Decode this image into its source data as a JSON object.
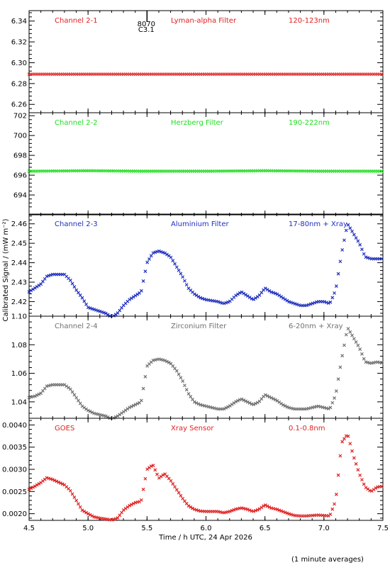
{
  "chart_data": {
    "type": "scatter",
    "xlabel": "Time / h UTC, 24 Apr 2026",
    "ylabel": "Calibrated Signal / (mW m⁻²)",
    "footer": "(1 minute averages)",
    "xlim": [
      4.5,
      7.5
    ],
    "x_ticks": [
      4.5,
      5.0,
      5.5,
      6.0,
      6.5,
      7.0,
      7.5
    ],
    "x_tick_labels": [
      "4.5",
      "5.0",
      "5.5",
      "6.0",
      "6.5",
      "7.0",
      "7.5"
    ],
    "marker_annotation": {
      "x": 5.5,
      "label_top": "8070",
      "label_bottom": "C3.1"
    },
    "panels": [
      {
        "channel": "Channel 2-1",
        "filter": "Lyman-alpha Filter",
        "band": "120-123nm",
        "color": "#e02020",
        "ylim": [
          6.252,
          6.35
        ],
        "y_ticks": [
          6.26,
          6.28,
          6.3,
          6.32,
          6.34
        ],
        "y_tick_labels": [
          "6.26",
          "6.28",
          "6.30",
          "6.32",
          "6.34"
        ],
        "series": [
          {
            "points": [
              [
                4.5,
                6.289
              ],
              [
                5.0,
                6.289
              ],
              [
                5.5,
                6.289
              ],
              [
                6.0,
                6.289
              ],
              [
                6.5,
                6.289
              ],
              [
                7.0,
                6.289
              ],
              [
                7.5,
                6.289
              ]
            ]
          }
        ]
      },
      {
        "channel": "Channel 2-2",
        "filter": "Herzberg Filter",
        "band": "190-222nm",
        "color": "#22dd22",
        "ylim": [
          692.0,
          702.3
        ],
        "y_ticks": [
          694,
          696,
          698,
          700,
          702
        ],
        "y_tick_labels": [
          "694",
          "696",
          "698",
          "700",
          "702"
        ],
        "series": [
          {
            "points": [
              [
                4.5,
                696.4
              ],
              [
                5.0,
                696.45
              ],
              [
                5.5,
                696.4
              ],
              [
                6.0,
                696.4
              ],
              [
                6.5,
                696.45
              ],
              [
                7.0,
                696.4
              ],
              [
                7.5,
                696.4
              ]
            ]
          }
        ]
      },
      {
        "channel": "Channel 2-3",
        "filter": "Aluminium Filter",
        "band": "17-80nm + Xray",
        "color": "#1f2fbf",
        "ylim": [
          2.4125,
          2.465
        ],
        "y_ticks": [
          2.42,
          2.43,
          2.44,
          2.45,
          2.46
        ],
        "y_tick_labels": [
          "2.42",
          "2.43",
          "2.44",
          "2.45",
          "2.46"
        ],
        "series": [
          {
            "points": [
              [
                4.5,
                2.425
              ],
              [
                4.55,
                2.427
              ],
              [
                4.6,
                2.429
              ],
              [
                4.65,
                2.433
              ],
              [
                4.7,
                2.434
              ],
              [
                4.8,
                2.434
              ],
              [
                4.85,
                2.431
              ],
              [
                4.9,
                2.426
              ],
              [
                4.95,
                2.422
              ],
              [
                5.0,
                2.417
              ],
              [
                5.05,
                2.416
              ],
              [
                5.1,
                2.415
              ],
              [
                5.15,
                2.414
              ],
              [
                5.2,
                2.412
              ],
              [
                5.25,
                2.414
              ],
              [
                5.3,
                2.418
              ],
              [
                5.35,
                2.421
              ],
              [
                5.4,
                2.423
              ],
              [
                5.45,
                2.425
              ],
              [
                5.5,
                2.44
              ],
              [
                5.55,
                2.445
              ],
              [
                5.6,
                2.446
              ],
              [
                5.65,
                2.445
              ],
              [
                5.7,
                2.443
              ],
              [
                5.75,
                2.438
              ],
              [
                5.8,
                2.433
              ],
              [
                5.85,
                2.427
              ],
              [
                5.9,
                2.424
              ],
              [
                5.95,
                2.422
              ],
              [
                6.0,
                2.421
              ],
              [
                6.1,
                2.42
              ],
              [
                6.15,
                2.419
              ],
              [
                6.2,
                2.42
              ],
              [
                6.25,
                2.423
              ],
              [
                6.3,
                2.425
              ],
              [
                6.35,
                2.423
              ],
              [
                6.4,
                2.421
              ],
              [
                6.45,
                2.423
              ],
              [
                6.5,
                2.427
              ],
              [
                6.55,
                2.425
              ],
              [
                6.6,
                2.424
              ],
              [
                6.65,
                2.422
              ],
              [
                6.7,
                2.42
              ],
              [
                6.75,
                2.419
              ],
              [
                6.8,
                2.418
              ],
              [
                6.85,
                2.418
              ],
              [
                6.9,
                2.419
              ],
              [
                6.95,
                2.42
              ],
              [
                7.0,
                2.42
              ],
              [
                7.05,
                2.419
              ],
              [
                7.1,
                2.426
              ],
              [
                7.15,
                2.445
              ],
              [
                7.2,
                2.46
              ],
              [
                7.25,
                2.455
              ],
              [
                7.3,
                2.45
              ],
              [
                7.35,
                2.443
              ],
              [
                7.4,
                2.442
              ],
              [
                7.45,
                2.442
              ],
              [
                7.5,
                2.442
              ]
            ]
          }
        ]
      },
      {
        "channel": "Channel 2-4",
        "filter": "Zirconium Filter",
        "band": "6-20nm + Xray",
        "color": "#707070",
        "ylim": [
          1.0285,
          1.1
        ],
        "y_ticks": [
          1.04,
          1.06,
          1.08,
          1.1
        ],
        "y_tick_labels": [
          "1.04",
          "1.06",
          "1.08",
          "1.10"
        ],
        "series": [
          {
            "points": [
              [
                4.5,
                1.043
              ],
              [
                4.55,
                1.044
              ],
              [
                4.6,
                1.046
              ],
              [
                4.65,
                1.051
              ],
              [
                4.7,
                1.052
              ],
              [
                4.8,
                1.052
              ],
              [
                4.85,
                1.049
              ],
              [
                4.9,
                1.043
              ],
              [
                4.95,
                1.037
              ],
              [
                5.0,
                1.034
              ],
              [
                5.05,
                1.032
              ],
              [
                5.1,
                1.031
              ],
              [
                5.15,
                1.03
              ],
              [
                5.2,
                1.028
              ],
              [
                5.25,
                1.03
              ],
              [
                5.3,
                1.033
              ],
              [
                5.35,
                1.036
              ],
              [
                5.4,
                1.038
              ],
              [
                5.45,
                1.04
              ],
              [
                5.5,
                1.065
              ],
              [
                5.55,
                1.069
              ],
              [
                5.6,
                1.07
              ],
              [
                5.65,
                1.069
              ],
              [
                5.7,
                1.067
              ],
              [
                5.75,
                1.062
              ],
              [
                5.8,
                1.055
              ],
              [
                5.85,
                1.046
              ],
              [
                5.9,
                1.04
              ],
              [
                5.95,
                1.038
              ],
              [
                6.0,
                1.037
              ],
              [
                6.1,
                1.035
              ],
              [
                6.15,
                1.035
              ],
              [
                6.2,
                1.037
              ],
              [
                6.25,
                1.04
              ],
              [
                6.3,
                1.042
              ],
              [
                6.35,
                1.04
              ],
              [
                6.4,
                1.038
              ],
              [
                6.45,
                1.04
              ],
              [
                6.5,
                1.045
              ],
              [
                6.55,
                1.043
              ],
              [
                6.6,
                1.041
              ],
              [
                6.65,
                1.038
              ],
              [
                6.7,
                1.036
              ],
              [
                6.75,
                1.035
              ],
              [
                6.8,
                1.035
              ],
              [
                6.85,
                1.035
              ],
              [
                6.9,
                1.036
              ],
              [
                6.95,
                1.037
              ],
              [
                7.0,
                1.036
              ],
              [
                7.05,
                1.035
              ],
              [
                7.1,
                1.045
              ],
              [
                7.15,
                1.07
              ],
              [
                7.2,
                1.092
              ],
              [
                7.25,
                1.085
              ],
              [
                7.3,
                1.078
              ],
              [
                7.35,
                1.068
              ],
              [
                7.4,
                1.067
              ],
              [
                7.45,
                1.068
              ],
              [
                7.5,
                1.067
              ]
            ]
          }
        ]
      },
      {
        "channel": "GOES",
        "filter": "Xray Sensor",
        "band": "0.1-0.8nm",
        "color": "#e02020",
        "ylim": [
          0.00185,
          0.00415
        ],
        "y_ticks": [
          0.002,
          0.0025,
          0.003,
          0.0035,
          0.004
        ],
        "y_tick_labels": [
          "0.0020",
          "0.0025",
          "0.0030",
          "0.0035",
          "0.0040"
        ],
        "series": [
          {
            "points": [
              [
                4.5,
                0.00255
              ],
              [
                4.55,
                0.00262
              ],
              [
                4.6,
                0.0027
              ],
              [
                4.65,
                0.00281
              ],
              [
                4.7,
                0.00277
              ],
              [
                4.8,
                0.00265
              ],
              [
                4.85,
                0.00252
              ],
              [
                4.9,
                0.0023
              ],
              [
                4.95,
                0.00208
              ],
              [
                5.0,
                0.002
              ],
              [
                5.05,
                0.00193
              ],
              [
                5.1,
                0.0019
              ],
              [
                5.15,
                0.00188
              ],
              [
                5.2,
                0.00186
              ],
              [
                5.25,
                0.0019
              ],
              [
                5.3,
                0.00208
              ],
              [
                5.35,
                0.00218
              ],
              [
                5.4,
                0.00225
              ],
              [
                5.45,
                0.00228
              ],
              [
                5.5,
                0.003
              ],
              [
                5.55,
                0.0031
              ],
              [
                5.6,
                0.0028
              ],
              [
                5.65,
                0.0029
              ],
              [
                5.7,
                0.00275
              ],
              [
                5.75,
                0.00255
              ],
              [
                5.8,
                0.00235
              ],
              [
                5.85,
                0.00218
              ],
              [
                5.9,
                0.0021
              ],
              [
                5.95,
                0.00206
              ],
              [
                6.0,
                0.00205
              ],
              [
                6.1,
                0.00205
              ],
              [
                6.15,
                0.00202
              ],
              [
                6.2,
                0.00205
              ],
              [
                6.25,
                0.0021
              ],
              [
                6.3,
                0.00213
              ],
              [
                6.35,
                0.0021
              ],
              [
                6.4,
                0.00205
              ],
              [
                6.45,
                0.0021
              ],
              [
                6.5,
                0.0022
              ],
              [
                6.55,
                0.00213
              ],
              [
                6.6,
                0.0021
              ],
              [
                6.65,
                0.00205
              ],
              [
                6.7,
                0.002
              ],
              [
                6.75,
                0.00196
              ],
              [
                6.8,
                0.00195
              ],
              [
                6.85,
                0.00195
              ],
              [
                6.9,
                0.00196
              ],
              [
                6.95,
                0.00197
              ],
              [
                7.0,
                0.00196
              ],
              [
                7.05,
                0.00195
              ],
              [
                7.1,
                0.0023
              ],
              [
                7.15,
                0.0036
              ],
              [
                7.2,
                0.0038
              ],
              [
                7.25,
                0.0033
              ],
              [
                7.3,
                0.0029
              ],
              [
                7.35,
                0.0026
              ],
              [
                7.4,
                0.0025
              ],
              [
                7.45,
                0.0026
              ],
              [
                7.5,
                0.00262
              ]
            ]
          }
        ]
      }
    ]
  }
}
